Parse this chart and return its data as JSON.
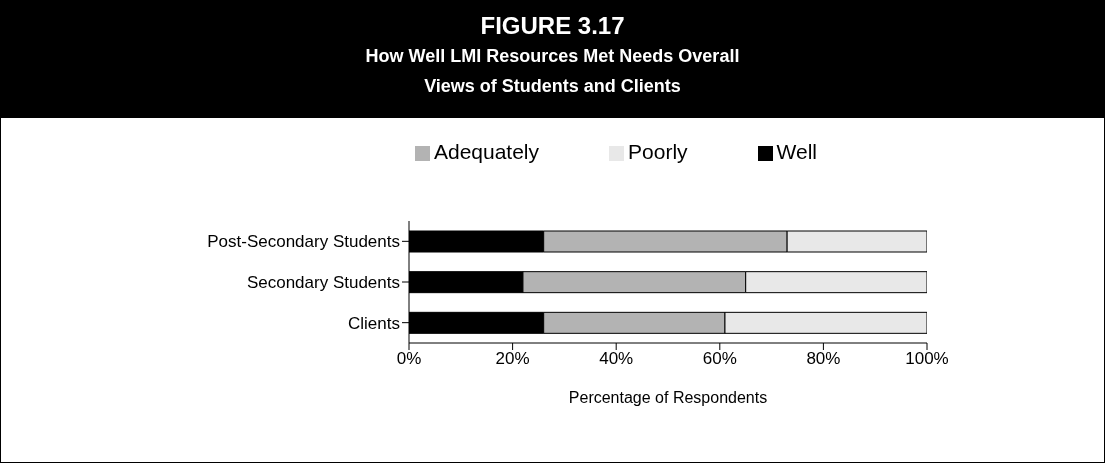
{
  "chart_data": {
    "type": "bar",
    "orientation": "horizontal",
    "stacked": true,
    "title": "FIGURE 3.17",
    "subtitle": "How Well LMI Resources Met Needs Overall\nViews of Students and Clients",
    "xlabel": "Percentage of Respondents",
    "categories": [
      "Post-Secondary Students",
      "Secondary Students",
      "Clients"
    ],
    "series": [
      {
        "name": "Well",
        "color": "#000000",
        "values": [
          26,
          22,
          26
        ]
      },
      {
        "name": "Adequately",
        "color": "#b3b3b3",
        "values": [
          47,
          43,
          35
        ]
      },
      {
        "name": "Poorly",
        "color": "#e8e8e8",
        "values": [
          27,
          35,
          39
        ]
      }
    ],
    "xlim": [
      0,
      100
    ],
    "xticks": [
      {
        "value": 0,
        "label": "0%"
      },
      {
        "value": 20,
        "label": "20%"
      },
      {
        "value": 40,
        "label": "40%"
      },
      {
        "value": 60,
        "label": "60%"
      },
      {
        "value": 80,
        "label": "80%"
      },
      {
        "value": 100,
        "label": "100%"
      }
    ],
    "grid": false,
    "legend": "top"
  }
}
